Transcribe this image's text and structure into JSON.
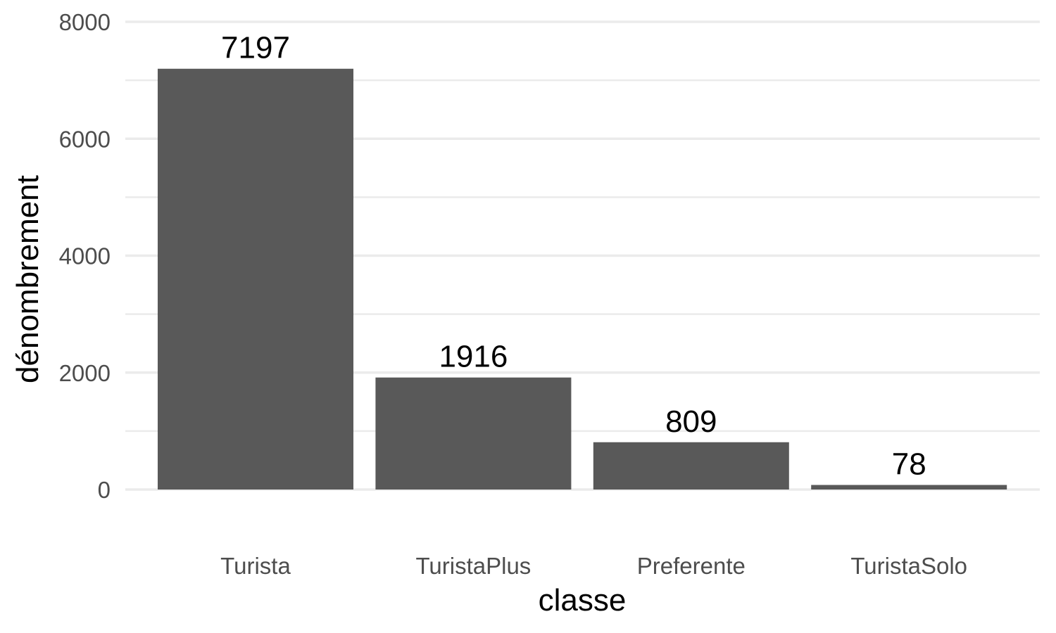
{
  "chart_data": {
    "type": "bar",
    "categories": [
      "Turista",
      "TuristaPlus",
      "Preferente",
      "TuristaSolo"
    ],
    "values": [
      7197,
      1916,
      809,
      78
    ],
    "data_labels": [
      "7197",
      "1916",
      "809",
      "78"
    ],
    "title": "",
    "xlabel": "classe",
    "ylabel": "dénombrement",
    "ylim": [
      0,
      8000
    ],
    "y_ticks": [
      0,
      2000,
      4000,
      6000,
      8000
    ],
    "y_tick_labels": [
      "0",
      "2000",
      "4000",
      "6000",
      "8000"
    ],
    "grid": true,
    "legend": "none",
    "colors": {
      "bar": "#595959",
      "grid": "#ebebeb",
      "tick_text": "#4d4d4d",
      "text": "#000000"
    }
  }
}
